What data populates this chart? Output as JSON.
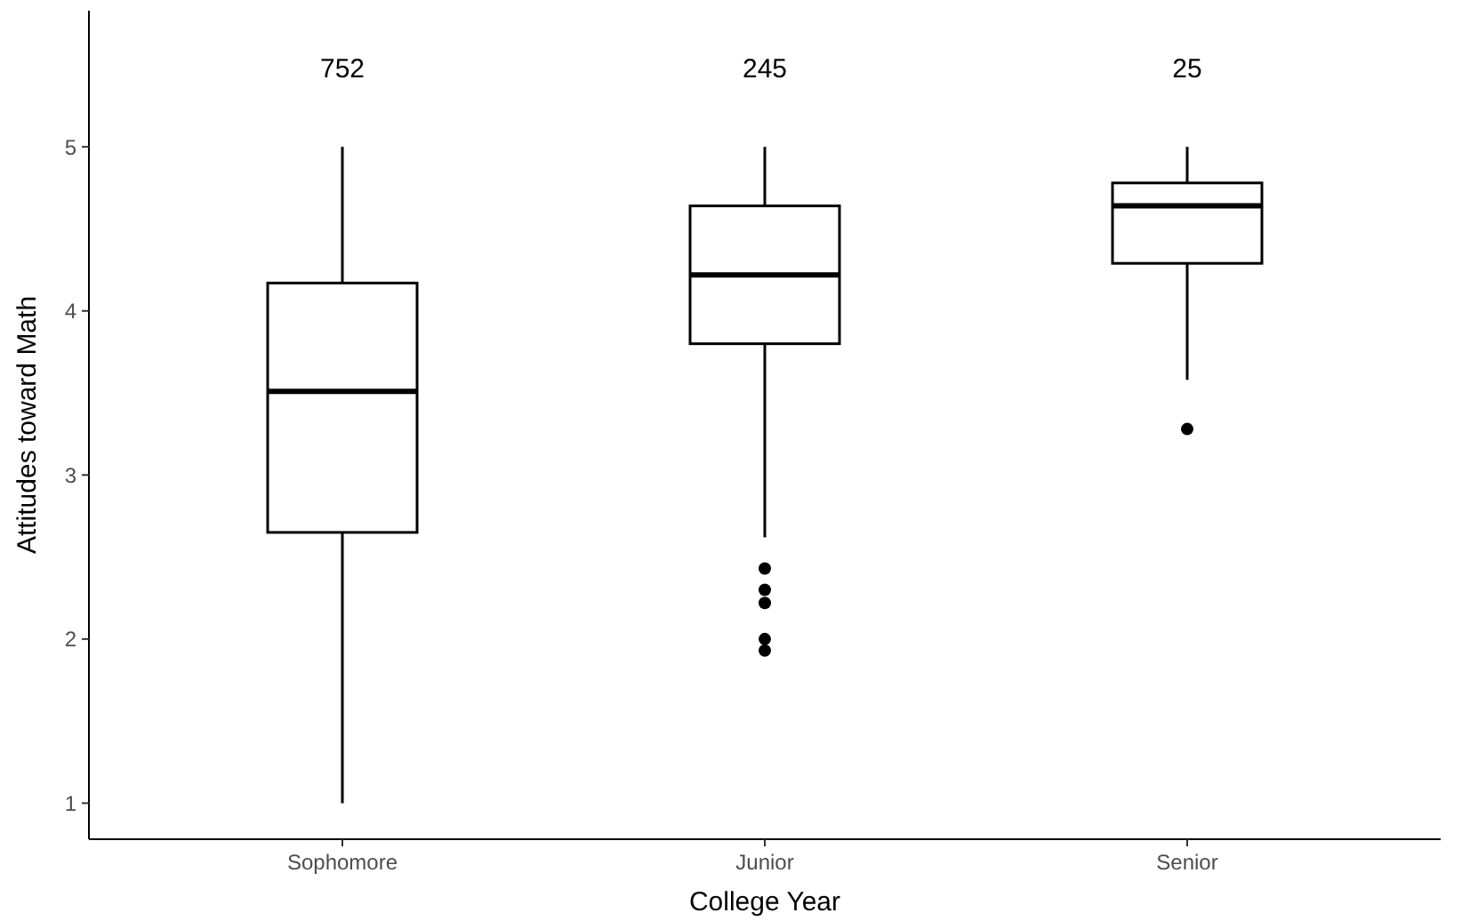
{
  "chart_data": {
    "type": "box",
    "xlabel": "College Year",
    "ylabel": "Attitudes toward Math",
    "categories": [
      "Sophomore",
      "Junior",
      "Senior"
    ],
    "boxes": [
      {
        "low": 1,
        "q1": 2.65,
        "median": 3.51,
        "q3": 4.17,
        "high": 5
      },
      {
        "low": 2.62,
        "q1": 3.8,
        "median": 4.22,
        "q3": 4.64,
        "high": 5,
        "outliers": [
          2.43,
          2.3,
          2.22,
          2.0,
          1.93
        ]
      },
      {
        "low": 3.58,
        "q1": 4.29,
        "median": 4.64,
        "q3": 4.78,
        "high": 5,
        "outliers": [
          3.28
        ]
      }
    ],
    "ylim": [
      0.78,
      5.83
    ],
    "yticks": [
      1,
      2,
      3,
      4,
      5
    ],
    "grid": false,
    "annotations": [
      "752",
      "245",
      "25"
    ]
  }
}
